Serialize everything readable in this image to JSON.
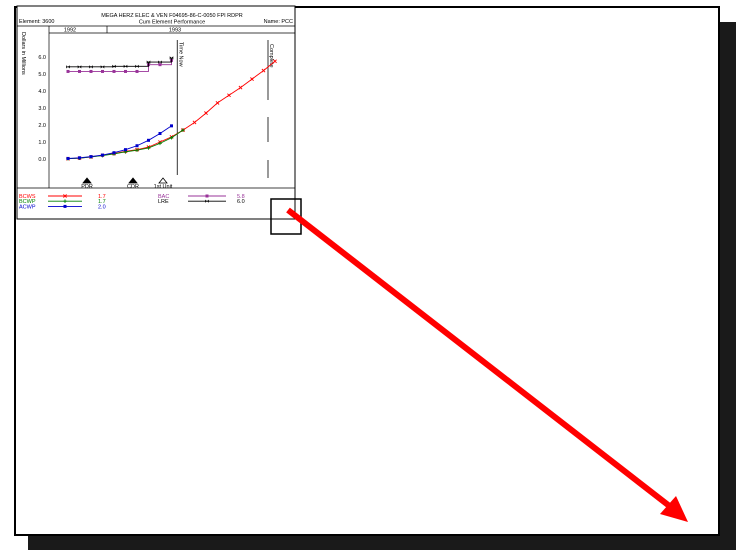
{
  "header": {
    "element": "Element: 3600",
    "title_line1": "MEGA HERZ ELEC & VEN F04695-86-C-0050 FPI RDPR",
    "title_line2": "Cum Element Performance",
    "name": "Name: PCC",
    "year1": "1992",
    "year2": "1993"
  },
  "chart_data": {
    "type": "line",
    "ylabel": "Dollars in Millions",
    "ylim": [
      -0.3,
      6.6
    ],
    "yticks": [
      "0.0",
      "1.0",
      "2.0",
      "3.0",
      "4.0",
      "5.0",
      "6.0"
    ],
    "annotations": [
      "Time Now",
      "Complete"
    ],
    "milestones": [
      "PDR",
      "CDR",
      "1st Unit"
    ],
    "series": [
      {
        "name": "BCWS",
        "color": "#ff0000",
        "marker": "x",
        "values": [
          0.02,
          0.05,
          0.12,
          0.22,
          0.32,
          0.45,
          0.55,
          0.7,
          1.0,
          1.3,
          1.7,
          2.15,
          2.7,
          3.3,
          3.75,
          4.2,
          4.7,
          5.2,
          5.75
        ],
        "legend_value": "1.7"
      },
      {
        "name": "BCWP",
        "color": "#008000",
        "marker": "+",
        "values": [
          0.02,
          0.05,
          0.12,
          0.2,
          0.3,
          0.42,
          0.52,
          0.65,
          0.92,
          1.25,
          1.7
        ],
        "legend_value": "1.7"
      },
      {
        "name": "ACWP",
        "color": "#0000cc",
        "marker": "square",
        "values": [
          0.03,
          0.07,
          0.14,
          0.23,
          0.37,
          0.55,
          0.78,
          1.1,
          1.5,
          1.95
        ],
        "legend_value": "2.0"
      },
      {
        "name": "BAC",
        "color": "#993399",
        "marker": "square",
        "values": [
          5.15,
          5.15,
          5.15,
          5.15,
          5.15,
          5.15,
          5.15,
          5.55,
          5.55,
          5.8
        ],
        "legend_value": "5.8"
      },
      {
        "name": "LRE",
        "color": "#000000",
        "marker": "bowtie",
        "values": [
          5.42,
          5.42,
          5.42,
          5.42,
          5.45,
          5.45,
          5.45,
          5.7,
          5.7,
          5.95
        ],
        "legend_value": "6.0"
      }
    ]
  },
  "colors": {
    "arrow": "#ff0000",
    "shadow": "#1a1a1a"
  }
}
